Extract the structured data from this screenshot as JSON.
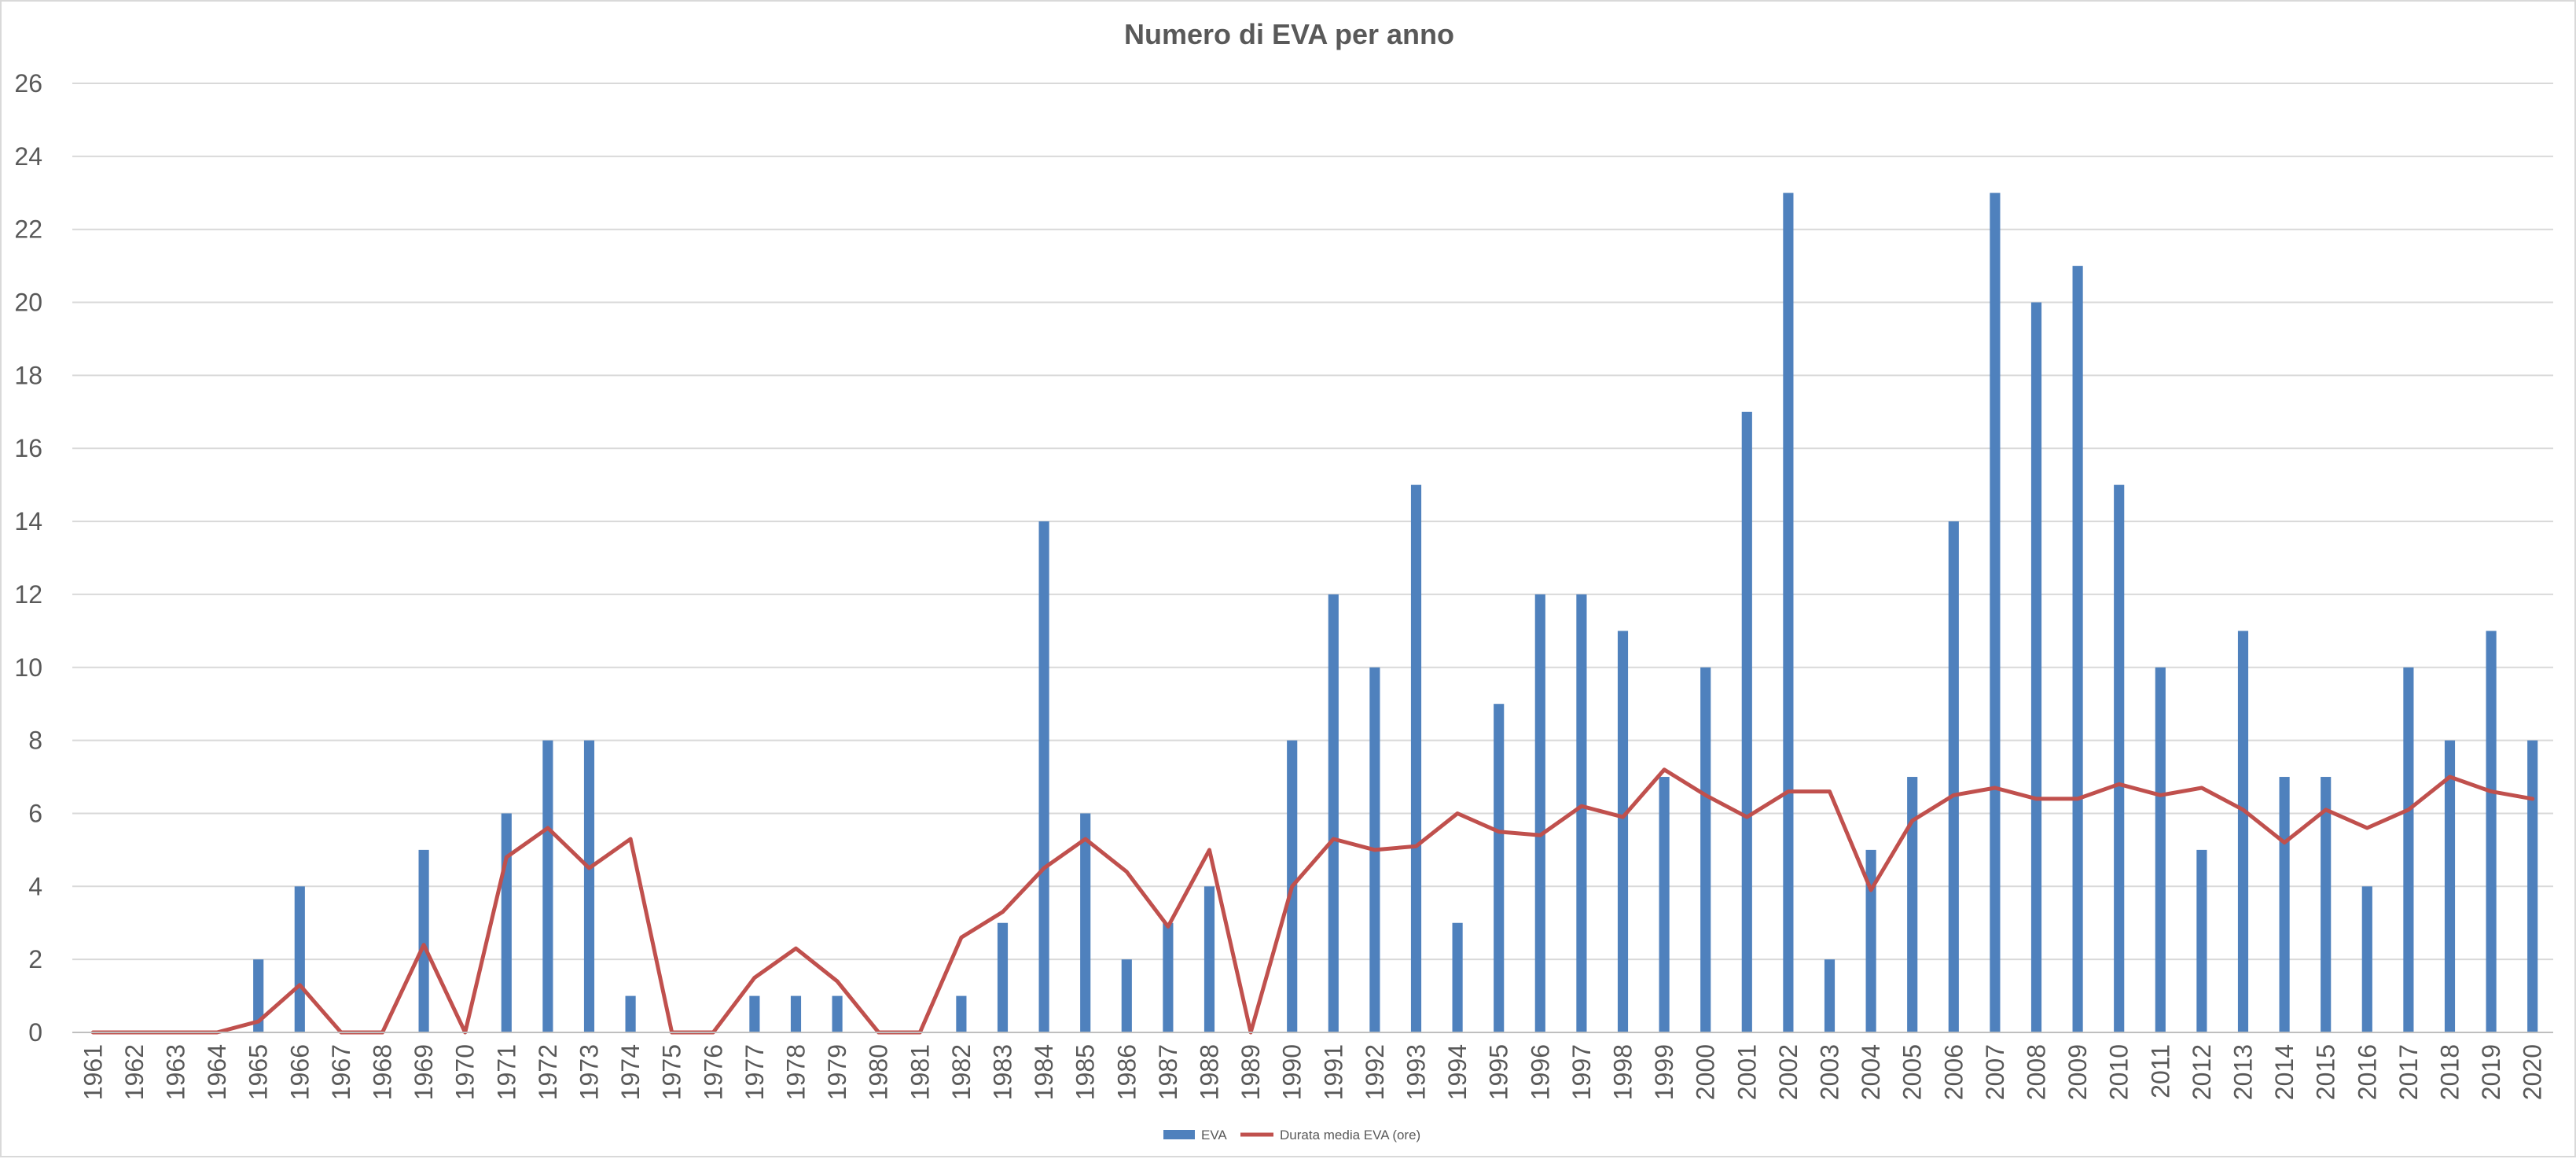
{
  "chart_data": {
    "type": "bar",
    "title": "Numero di EVA per anno",
    "xlabel": "",
    "ylabel": "",
    "ylim": [
      0,
      26
    ],
    "yticks": [
      0,
      2,
      4,
      6,
      8,
      10,
      12,
      14,
      16,
      18,
      20,
      22,
      24,
      26
    ],
    "grid": "horizontal",
    "legend_position": "bottom",
    "categories": [
      "1961",
      "1962",
      "1963",
      "1964",
      "1965",
      "1966",
      "1967",
      "1968",
      "1969",
      "1970",
      "1971",
      "1972",
      "1973",
      "1974",
      "1975",
      "1976",
      "1977",
      "1978",
      "1979",
      "1980",
      "1981",
      "1982",
      "1983",
      "1984",
      "1985",
      "1986",
      "1987",
      "1988",
      "1989",
      "1990",
      "1991",
      "1992",
      "1993",
      "1994",
      "1995",
      "1996",
      "1997",
      "1998",
      "1999",
      "2000",
      "2001",
      "2002",
      "2003",
      "2004",
      "2005",
      "2006",
      "2007",
      "2008",
      "2009",
      "2010",
      "2011",
      "2012",
      "2013",
      "2014",
      "2015",
      "2016",
      "2017",
      "2018",
      "2019",
      "2020"
    ],
    "series": [
      {
        "name": "EVA",
        "type": "bar",
        "color": "#4f81bd",
        "values": [
          0,
          0,
          0,
          0,
          2,
          4,
          0,
          0,
          5,
          0,
          6,
          8,
          8,
          1,
          0,
          0,
          1,
          1,
          1,
          0,
          0,
          1,
          3,
          14,
          6,
          2,
          3,
          4,
          0,
          8,
          12,
          10,
          15,
          3,
          9,
          12,
          12,
          11,
          7,
          10,
          17,
          23,
          2,
          5,
          7,
          14,
          23,
          20,
          21,
          15,
          10,
          5,
          11,
          7,
          7,
          4,
          10,
          8,
          11,
          8
        ]
      },
      {
        "name": "Durata media EVA (ore)",
        "type": "line",
        "color": "#c0504d",
        "values": [
          0,
          0,
          0,
          0,
          0.3,
          1.3,
          0,
          0,
          2.4,
          0,
          4.8,
          5.6,
          4.5,
          5.3,
          0,
          0,
          1.5,
          2.3,
          1.4,
          0,
          0,
          2.6,
          3.3,
          4.5,
          5.3,
          4.4,
          2.9,
          5.0,
          0,
          4.0,
          5.3,
          5.0,
          5.1,
          6.0,
          5.5,
          5.4,
          6.2,
          5.9,
          7.2,
          6.5,
          5.9,
          6.6,
          6.6,
          3.9,
          5.8,
          6.5,
          6.7,
          6.4,
          6.4,
          6.8,
          6.5,
          6.7,
          6.1,
          5.2,
          6.1,
          5.6,
          6.1,
          7.0,
          6.6,
          6.4
        ]
      }
    ]
  }
}
